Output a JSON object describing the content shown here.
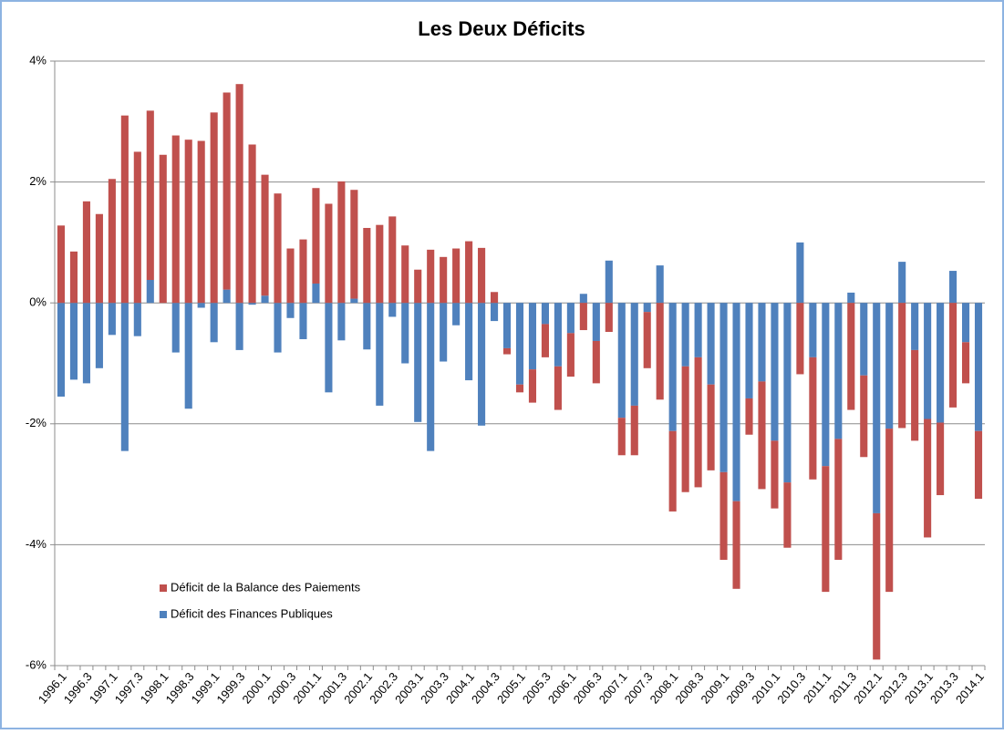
{
  "chart_data": {
    "type": "stacked_bar",
    "title": "Les Deux Déficits",
    "categories": [
      "1996.1",
      null,
      "1996.3",
      null,
      "1997.1",
      null,
      "1997.3",
      null,
      "1998.1",
      null,
      "1998.3",
      null,
      "1999.1",
      null,
      "1999.3",
      null,
      "2000.1",
      null,
      "2000.3",
      null,
      "2001.1",
      null,
      "2001.3",
      null,
      "2002.1",
      null,
      "2002.3",
      null,
      "2003.1",
      null,
      "2003.3",
      null,
      "2004.1",
      null,
      "2004.3",
      null,
      "2005.1",
      null,
      "2005.3",
      null,
      "2006.1",
      null,
      "2006.3",
      null,
      "2007.1",
      null,
      "2007.3",
      null,
      "2008.1",
      null,
      "2008.3",
      null,
      "2009.1",
      null,
      "2009.3",
      null,
      "2010.1",
      null,
      "2010.3",
      null,
      "2011.1",
      null,
      "2011.3",
      null,
      "2012.1",
      null,
      "2012.3",
      null,
      "2013.1",
      null,
      "2013.3",
      null,
      "2014.1"
    ],
    "series": [
      {
        "name": "Déficit de la Balance des Paiements",
        "color": "#c0504d",
        "values": [
          1.28,
          0.85,
          1.68,
          1.47,
          2.05,
          3.1,
          2.5,
          2.8,
          2.45,
          2.77,
          2.7,
          2.68,
          3.15,
          3.26,
          3.62,
          2.62,
          2.0,
          1.81,
          0.9,
          1.05,
          1.58,
          1.64,
          2.01,
          1.8,
          1.24,
          1.29,
          1.43,
          0.95,
          0.55,
          0.88,
          0.76,
          0.9,
          1.02,
          0.91,
          0.18,
          -0.1,
          -0.13,
          -0.55,
          -0.55,
          -0.72,
          -0.72,
          -0.45,
          -0.7,
          -0.48,
          -0.62,
          -0.82,
          -0.93,
          -1.6,
          -1.33,
          -2.08,
          -2.15,
          -1.42,
          -1.45,
          -1.45,
          -0.6,
          -1.78,
          -1.12,
          -1.08,
          -1.18,
          -2.02,
          -2.08,
          -2.0,
          -1.77,
          -1.35,
          -2.42,
          -2.7,
          -2.07,
          -1.5,
          -1.96,
          -1.2,
          -1.73,
          -0.68,
          -1.12
        ]
      },
      {
        "name": "Déficit des Finances Publiques",
        "color": "#4f81bd",
        "values": [
          -1.55,
          -1.27,
          -1.33,
          -1.08,
          -0.53,
          -2.45,
          -0.55,
          0.38,
          0,
          -0.82,
          -1.75,
          -0.08,
          -0.65,
          0.22,
          -0.78,
          -0.03,
          0.12,
          -0.82,
          -0.25,
          -0.6,
          0.32,
          -1.48,
          -0.62,
          0.07,
          -0.77,
          -1.7,
          -0.23,
          -1.0,
          -1.97,
          -2.45,
          -0.97,
          -0.37,
          -1.28,
          -2.03,
          -0.3,
          -0.75,
          -1.35,
          -1.1,
          -0.35,
          -1.05,
          -0.5,
          0.15,
          -0.63,
          0.7,
          -1.9,
          -1.7,
          -0.15,
          0.62,
          -2.12,
          -1.05,
          -0.9,
          -1.35,
          -2.8,
          -3.28,
          -1.58,
          -1.3,
          -2.28,
          -2.97,
          1.0,
          -0.9,
          -2.7,
          -2.25,
          0.17,
          -1.2,
          -3.48,
          -2.08,
          0.68,
          -0.78,
          -1.92,
          -1.98,
          0.53,
          -0.65,
          -2.12
        ]
      }
    ],
    "ylim": [
      -6,
      4
    ],
    "yticks": [
      {
        "value": -6,
        "label": "-6%"
      },
      {
        "value": -4,
        "label": "-4%"
      },
      {
        "value": -2,
        "label": "-2%"
      },
      {
        "value": 0,
        "label": "0%"
      },
      {
        "value": 2,
        "label": "2%"
      },
      {
        "value": 4,
        "label": "4%"
      }
    ],
    "grid": true,
    "legend": "lower left"
  }
}
